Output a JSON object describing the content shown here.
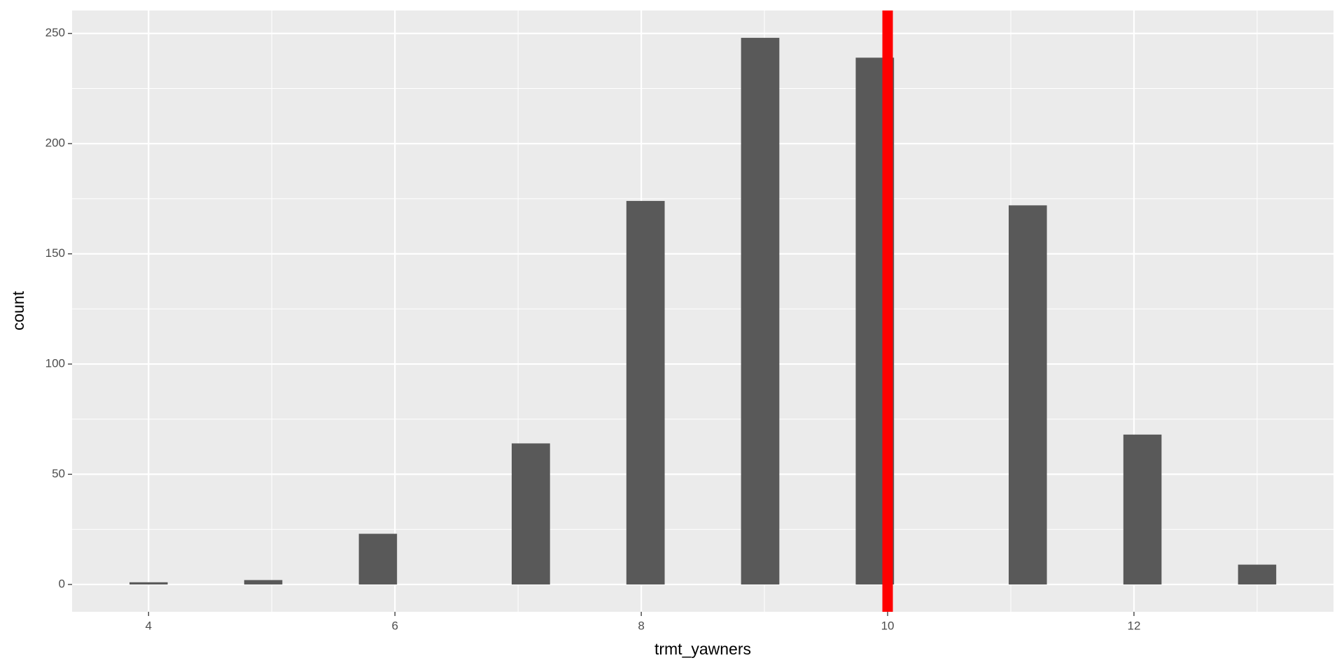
{
  "chart_data": {
    "type": "histogram",
    "x_label": "trmt_yawners",
    "y_label": "count",
    "bins": [
      3.845,
      4.155,
      4.466,
      4.776,
      5.086,
      5.397,
      5.707,
      6.017,
      6.328,
      6.638,
      6.948,
      7.259,
      7.569,
      7.879,
      8.19,
      8.5,
      8.81,
      9.121,
      9.431,
      9.741,
      10.052,
      10.362,
      10.672,
      10.983,
      11.293,
      11.603,
      11.914,
      12.224,
      12.534,
      12.845,
      13.155
    ],
    "values": [
      1,
      0,
      0,
      2,
      0,
      0,
      23,
      0,
      0,
      0,
      64,
      0,
      0,
      174,
      0,
      0,
      248,
      0,
      0,
      239,
      0,
      0,
      0,
      172,
      0,
      0,
      68,
      0,
      0,
      9
    ],
    "color": "#595959",
    "xlim": [
      3.379,
      13.62
    ],
    "ylim": [
      -12.4,
      260.4
    ],
    "xticks": [
      4,
      6,
      8,
      10,
      12
    ],
    "yticks": [
      0,
      50,
      100,
      150,
      200,
      250
    ],
    "xminor_ticks": [
      5,
      7,
      9,
      11,
      13
    ],
    "yminor_ticks": [
      25,
      75,
      125,
      175,
      225
    ],
    "grid": true,
    "vline": {
      "value": 10,
      "color": "#ff0000"
    }
  }
}
